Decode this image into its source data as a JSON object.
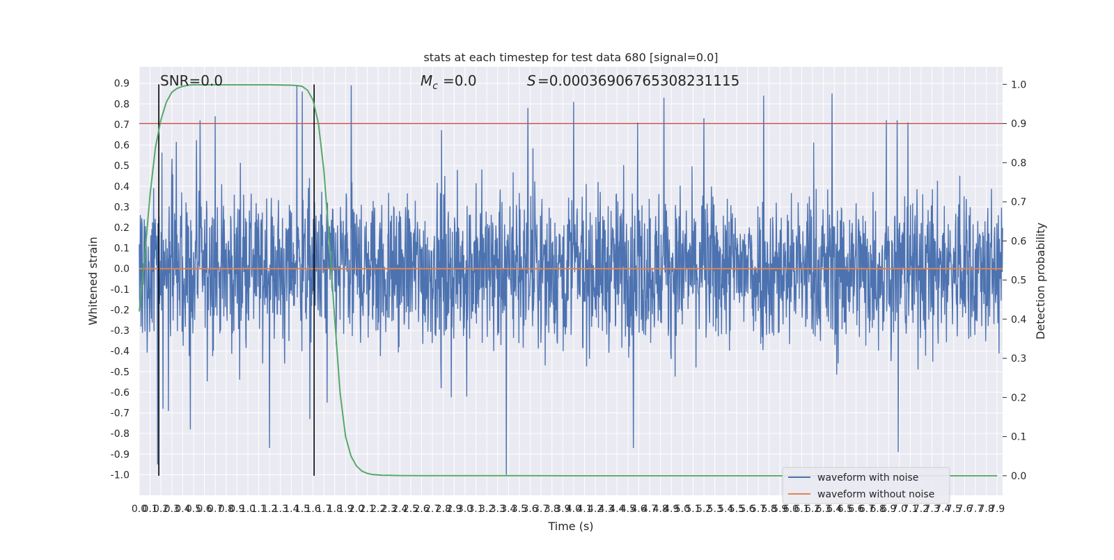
{
  "chart_data": {
    "type": "line",
    "title": "stats at each timestep for test data 680 [signal=0.0]",
    "xlabel": "Time (s)",
    "ylabel": "Whitened strain",
    "y2label": "Detection probability",
    "xlim": [
      0.0,
      7.95
    ],
    "ylim": [
      -1.1,
      0.98
    ],
    "y2lim": [
      -0.05,
      1.045
    ],
    "x_ticks": [
      0.0,
      0.1,
      0.2,
      0.3,
      0.4,
      0.5,
      0.6,
      0.7,
      0.8,
      0.9,
      1.0,
      1.1,
      1.2,
      1.3,
      1.4,
      1.5,
      1.6,
      1.7,
      1.8,
      1.9,
      2.0,
      2.1,
      2.2,
      2.3,
      2.4,
      2.5,
      2.6,
      2.7,
      2.8,
      2.9,
      3.0,
      3.1,
      3.2,
      3.3,
      3.4,
      3.5,
      3.6,
      3.7,
      3.8,
      3.9,
      4.0,
      4.1,
      4.2,
      4.3,
      4.4,
      4.5,
      4.6,
      4.7,
      4.8,
      4.9,
      5.0,
      5.1,
      5.2,
      5.3,
      5.4,
      5.5,
      5.6,
      5.7,
      5.8,
      5.9,
      6.0,
      6.1,
      6.2,
      6.3,
      6.4,
      6.5,
      6.6,
      6.7,
      6.8,
      6.9,
      7.0,
      7.1,
      7.2,
      7.3,
      7.4,
      7.5,
      7.6,
      7.7,
      7.8,
      7.9
    ],
    "y_ticks": [
      -1.0,
      -0.9,
      -0.8,
      -0.7,
      -0.6,
      -0.5,
      -0.4,
      -0.3,
      -0.2,
      -0.1,
      0.0,
      0.1,
      0.2,
      0.3,
      0.4,
      0.5,
      0.6,
      0.7,
      0.8,
      0.9
    ],
    "y2_ticks": [
      0.0,
      0.1,
      0.2,
      0.3,
      0.4,
      0.5,
      0.6,
      0.7,
      0.8,
      0.9,
      1.0
    ],
    "grid": true,
    "legend_position": "lower-right",
    "annotations": {
      "snr": "SNR=0.0",
      "mc": "=0.0",
      "s": "=0.0003690676530823111​5"
    },
    "threshold": {
      "y2": 0.9,
      "color": "#c44e52"
    },
    "vlines": [
      0.18,
      1.61
    ],
    "series": [
      {
        "name": "waveform with noise",
        "color": "#4c72b0",
        "description_envelope": {
          "typical_amplitude": 0.35,
          "peak_amplitude": 0.85,
          "min": -1.0,
          "max": 0.89
        },
        "notable_peaks": [
          [
            0.17,
            -0.95
          ],
          [
            0.22,
            -0.68
          ],
          [
            0.27,
            -0.69
          ],
          [
            0.47,
            -0.78
          ],
          [
            0.56,
            0.72
          ],
          [
            0.7,
            0.74
          ],
          [
            1.2,
            -0.87
          ],
          [
            1.45,
            0.89
          ],
          [
            1.5,
            0.86
          ],
          [
            1.57,
            -0.73
          ],
          [
            1.73,
            -0.65
          ],
          [
            2.78,
            -0.58
          ],
          [
            3.38,
            -1.0
          ],
          [
            3.58,
            0.78
          ],
          [
            4.0,
            0.81
          ],
          [
            4.55,
            -0.87
          ],
          [
            4.59,
            0.71
          ],
          [
            4.83,
            0.83
          ],
          [
            5.2,
            0.73
          ],
          [
            5.75,
            0.84
          ],
          [
            6.38,
            0.85
          ],
          [
            6.88,
            0.72
          ],
          [
            6.98,
            0.72
          ],
          [
            6.99,
            -0.89
          ],
          [
            7.08,
            0.71
          ]
        ]
      },
      {
        "name": "waveform without noise",
        "color": "#dd8452",
        "x": [
          0.0,
          7.95
        ],
        "y": [
          0.0,
          0.0
        ]
      },
      {
        "name": "detection probability",
        "color": "#55a868",
        "axis": "right",
        "x": [
          0.0,
          0.05,
          0.1,
          0.15,
          0.2,
          0.25,
          0.3,
          0.35,
          0.4,
          0.45,
          0.5,
          0.6,
          0.8,
          1.0,
          1.2,
          1.4,
          1.45,
          1.5,
          1.55,
          1.6,
          1.65,
          1.7,
          1.75,
          1.8,
          1.85,
          1.9,
          1.95,
          2.0,
          2.05,
          2.1,
          2.15,
          2.2,
          2.25,
          2.3,
          2.4,
          2.6,
          3.0,
          4.0,
          5.0,
          6.0,
          7.0,
          7.9
        ],
        "y": [
          0.42,
          0.56,
          0.72,
          0.84,
          0.91,
          0.955,
          0.98,
          0.99,
          0.995,
          0.998,
          0.999,
          0.999,
          0.999,
          0.999,
          0.999,
          0.998,
          0.997,
          0.995,
          0.985,
          0.96,
          0.9,
          0.78,
          0.6,
          0.4,
          0.21,
          0.1,
          0.05,
          0.025,
          0.012,
          0.006,
          0.003,
          0.002,
          0.001,
          0.001,
          0.0005,
          0.0003,
          0.0002,
          0.0001,
          0.0001,
          0.0001,
          0.0001,
          0.0001
        ]
      }
    ]
  }
}
